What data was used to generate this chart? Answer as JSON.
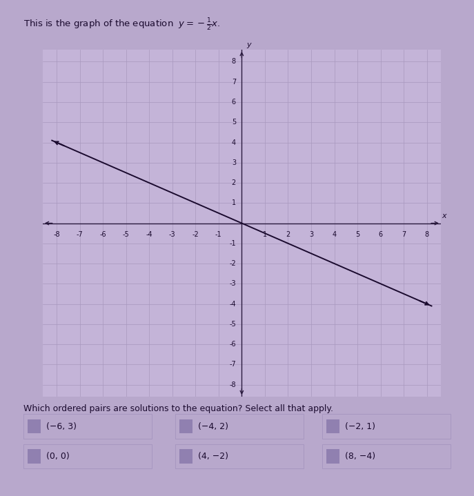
{
  "background_color": "#b8a8cc",
  "graph_bg": "#c4b4d8",
  "grid_color": "#a898be",
  "axis_color": "#2a1a3e",
  "line_color": "#1a0a2e",
  "text_color": "#1a0a2e",
  "xlim": [
    -8.6,
    8.6
  ],
  "ylim": [
    -8.6,
    8.6
  ],
  "xticks": [
    -8,
    -7,
    -6,
    -5,
    -4,
    -3,
    -2,
    -1,
    1,
    2,
    3,
    4,
    5,
    6,
    7,
    8
  ],
  "yticks": [
    -8,
    -7,
    -6,
    -5,
    -4,
    -3,
    -2,
    -1,
    1,
    2,
    3,
    4,
    5,
    6,
    7,
    8
  ],
  "line_x": [
    -8.2,
    8.2
  ],
  "line_y": [
    4.1,
    -4.1
  ],
  "title_plain": "This is the graph of the equation y = ",
  "title_frac": "$-\\frac{1}{2}x$.",
  "question": "Which ordered pairs are solutions to the equation? Select all that apply.",
  "choices": [
    {
      "label": "(−6, 3)",
      "col": 0,
      "row": 0
    },
    {
      "label": "(−4, 2)",
      "col": 1,
      "row": 0
    },
    {
      "label": "(−2, 1)",
      "col": 2,
      "row": 0
    },
    {
      "label": "(0, 0)",
      "col": 0,
      "row": 1
    },
    {
      "label": "(4, −2)",
      "col": 1,
      "row": 1
    },
    {
      "label": "(8, −4)",
      "col": 2,
      "row": 1
    }
  ],
  "choice_bg": "#b8a8cc",
  "checkbox_bg": "#9080b0",
  "font_size_ticks": 7,
  "font_size_axis_label": 8,
  "font_size_title": 9.5,
  "font_size_question": 9,
  "font_size_choices": 9
}
